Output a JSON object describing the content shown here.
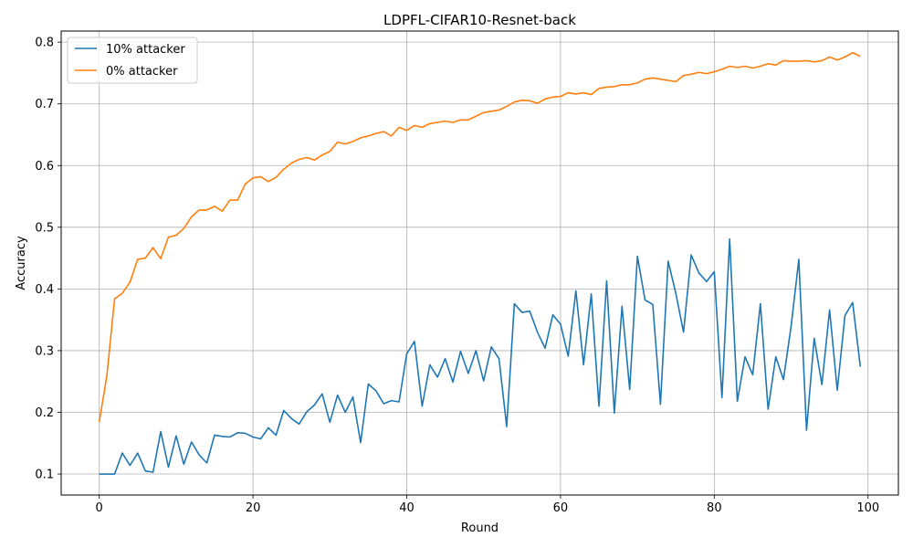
{
  "chart_data": {
    "type": "line",
    "title": "LDPFL-CIFAR10-Resnet-back",
    "xlabel": "Round",
    "ylabel": "Accuracy",
    "xlim": [
      -4.95,
      103.95
    ],
    "ylim": [
      0.066,
      0.818
    ],
    "xticks": [
      0,
      20,
      40,
      60,
      80,
      100
    ],
    "yticks": [
      0.1,
      0.2,
      0.3,
      0.4,
      0.5,
      0.6,
      0.7,
      0.8
    ],
    "grid": true,
    "legend_position": "top-left",
    "x": [
      0,
      1,
      2,
      3,
      4,
      5,
      6,
      7,
      8,
      9,
      10,
      11,
      12,
      13,
      14,
      15,
      16,
      17,
      18,
      19,
      20,
      21,
      22,
      23,
      24,
      25,
      26,
      27,
      28,
      29,
      30,
      31,
      32,
      33,
      34,
      35,
      36,
      37,
      38,
      39,
      40,
      41,
      42,
      43,
      44,
      45,
      46,
      47,
      48,
      49,
      50,
      51,
      52,
      53,
      54,
      55,
      56,
      57,
      58,
      59,
      60,
      61,
      62,
      63,
      64,
      65,
      66,
      67,
      68,
      69,
      70,
      71,
      72,
      73,
      74,
      75,
      76,
      77,
      78,
      79,
      80,
      81,
      82,
      83,
      84,
      85,
      86,
      87,
      88,
      89,
      90,
      91,
      92,
      93,
      94,
      95,
      96,
      97,
      98,
      99
    ],
    "series": [
      {
        "name": "10% attacker",
        "color": "#1f77b4",
        "values": [
          0.1,
          0.1,
          0.1,
          0.134,
          0.114,
          0.134,
          0.105,
          0.103,
          0.169,
          0.111,
          0.162,
          0.116,
          0.152,
          0.131,
          0.118,
          0.163,
          0.161,
          0.16,
          0.167,
          0.166,
          0.16,
          0.157,
          0.175,
          0.163,
          0.203,
          0.19,
          0.181,
          0.201,
          0.212,
          0.23,
          0.184,
          0.228,
          0.2,
          0.225,
          0.151,
          0.246,
          0.235,
          0.214,
          0.219,
          0.217,
          0.295,
          0.315,
          0.21,
          0.277,
          0.257,
          0.287,
          0.249,
          0.299,
          0.263,
          0.3,
          0.251,
          0.306,
          0.287,
          0.177,
          0.376,
          0.362,
          0.364,
          0.33,
          0.304,
          0.358,
          0.343,
          0.291,
          0.397,
          0.277,
          0.392,
          0.21,
          0.413,
          0.199,
          0.372,
          0.237,
          0.453,
          0.382,
          0.375,
          0.213,
          0.445,
          0.393,
          0.33,
          0.455,
          0.426,
          0.412,
          0.428,
          0.224,
          0.481,
          0.218,
          0.29,
          0.261,
          0.376,
          0.205,
          0.29,
          0.253,
          0.34,
          0.448,
          0.171,
          0.32,
          0.245,
          0.366,
          0.236,
          0.357,
          0.378,
          0.274
        ]
      },
      {
        "name": "0% attacker",
        "color": "#ff7f0e",
        "values": [
          0.184,
          0.26,
          0.384,
          0.393,
          0.411,
          0.448,
          0.45,
          0.467,
          0.449,
          0.484,
          0.487,
          0.498,
          0.517,
          0.528,
          0.528,
          0.534,
          0.526,
          0.544,
          0.544,
          0.57,
          0.58,
          0.582,
          0.574,
          0.581,
          0.594,
          0.604,
          0.61,
          0.613,
          0.609,
          0.617,
          0.623,
          0.638,
          0.635,
          0.639,
          0.645,
          0.648,
          0.652,
          0.655,
          0.648,
          0.662,
          0.657,
          0.665,
          0.662,
          0.668,
          0.67,
          0.672,
          0.67,
          0.674,
          0.674,
          0.68,
          0.686,
          0.688,
          0.69,
          0.696,
          0.703,
          0.706,
          0.705,
          0.701,
          0.708,
          0.711,
          0.712,
          0.718,
          0.716,
          0.718,
          0.715,
          0.725,
          0.727,
          0.728,
          0.731,
          0.731,
          0.734,
          0.74,
          0.742,
          0.74,
          0.738,
          0.736,
          0.746,
          0.748,
          0.751,
          0.749,
          0.752,
          0.756,
          0.761,
          0.759,
          0.761,
          0.758,
          0.761,
          0.765,
          0.763,
          0.77,
          0.769,
          0.769,
          0.77,
          0.768,
          0.77,
          0.776,
          0.771,
          0.776,
          0.783,
          0.777
        ]
      }
    ]
  }
}
